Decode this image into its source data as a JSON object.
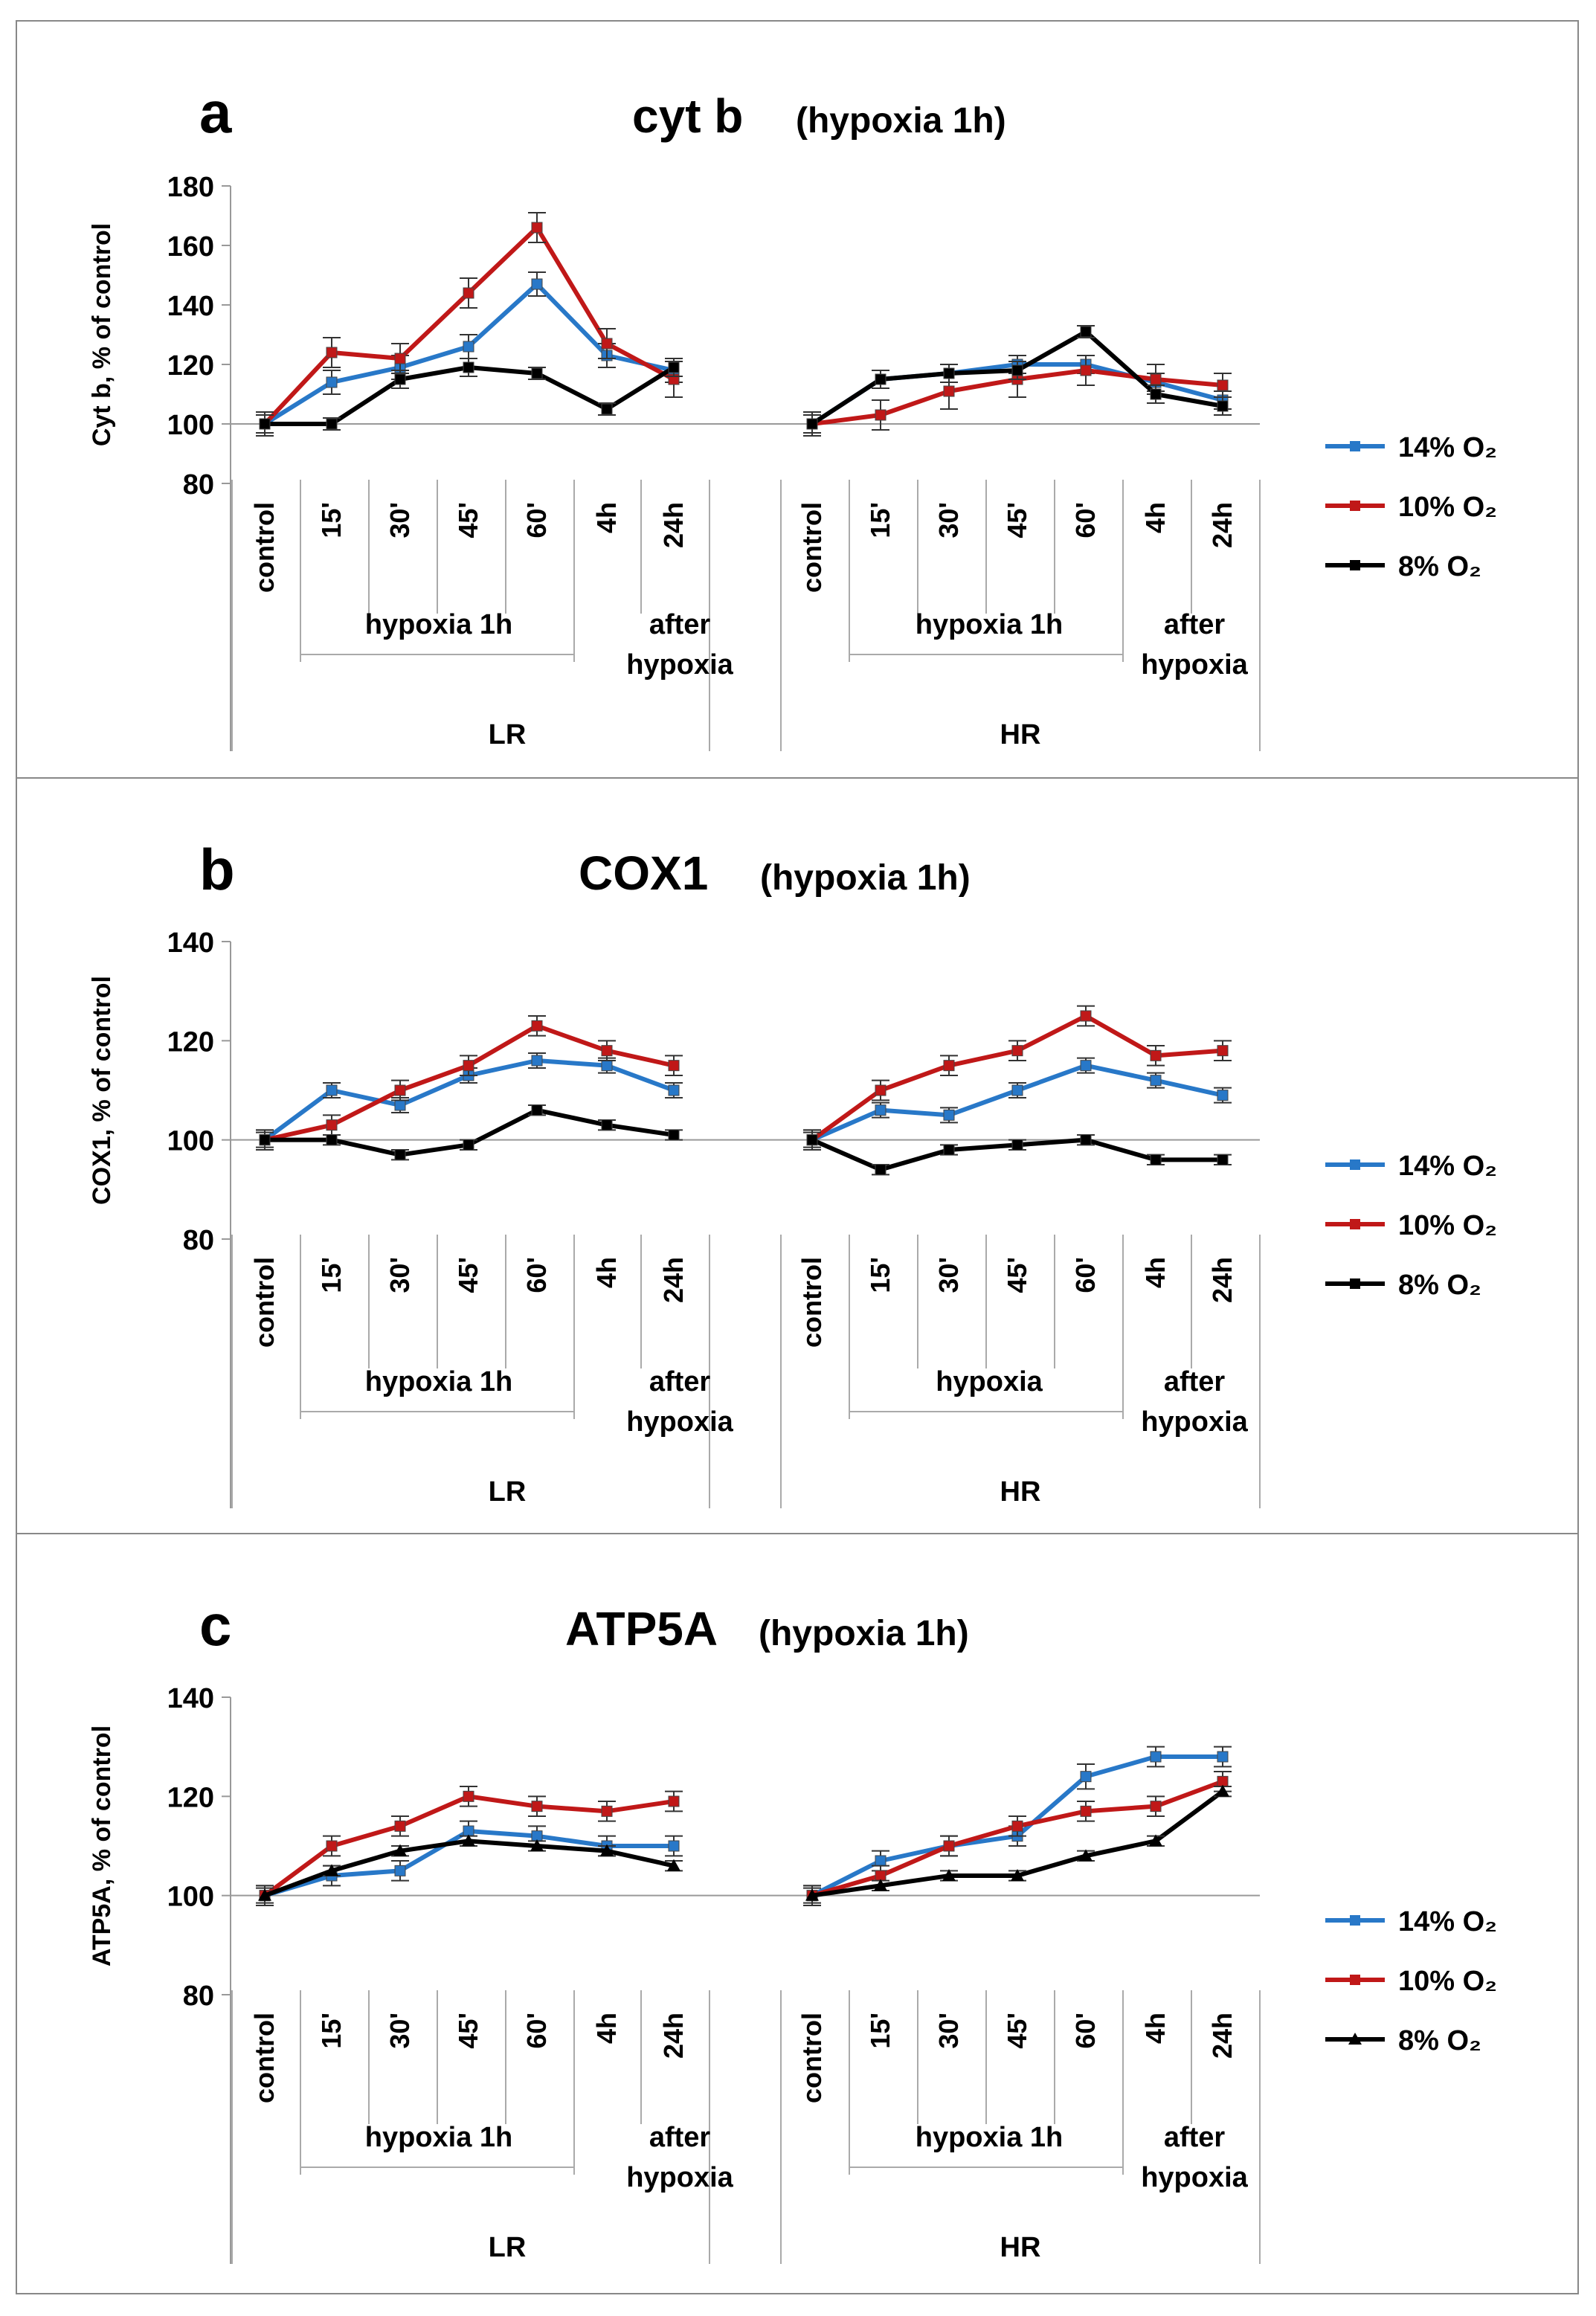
{
  "colors": {
    "s14": "#2878c8",
    "s10": "#c01818",
    "s8": "#000000"
  },
  "chart_data": [
    {
      "panel": "a",
      "type": "line",
      "title": "cyt b",
      "subtitle": "(hypoxia 1h)",
      "ylabel": "Cyt b, % of control",
      "ylim": [
        80,
        180
      ],
      "yticks": [
        80,
        100,
        120,
        140,
        160,
        180
      ],
      "timepoints": [
        "control",
        "15'",
        "30'",
        "45'",
        "60'",
        "4h",
        "24h"
      ],
      "groups": [
        {
          "name": "LR",
          "hypoxia_label": "hypoxia 1h",
          "after_label_1": "after",
          "after_label_2": "hypoxia"
        },
        {
          "name": "HR",
          "hypoxia_label": "hypoxia 1h",
          "after_label_1": "after",
          "after_label_2": "hypoxia"
        }
      ],
      "legend": [
        "14% O₂",
        "10% O₂",
        "8% O₂"
      ],
      "series": [
        {
          "name": "14% O₂",
          "color": "#2878c8",
          "marker": "square",
          "values": [
            [
              100,
              114,
              119,
              126,
              147,
              123,
              118
            ],
            [
              100,
              115,
              117,
              120,
              120,
              114,
              108
            ]
          ],
          "errors": [
            [
              4,
              4,
              4,
              4,
              4,
              4,
              4
            ],
            [
              4,
              3,
              3,
              3,
              3,
              3,
              3
            ]
          ]
        },
        {
          "name": "10% O₂",
          "color": "#c01818",
          "marker": "square",
          "values": [
            [
              100,
              124,
              122,
              144,
              166,
              127,
              115
            ],
            [
              100,
              103,
              111,
              115,
              118,
              115,
              113
            ]
          ],
          "errors": [
            [
              4,
              5,
              5,
              5,
              5,
              5,
              6
            ],
            [
              4,
              5,
              6,
              6,
              5,
              5,
              4
            ]
          ]
        },
        {
          "name": "8% O₂",
          "color": "#000000",
          "marker": "square",
          "values": [
            [
              100,
              100,
              115,
              119,
              117,
              105,
              119
            ],
            [
              100,
              115,
              117,
              118,
              131,
              110,
              106
            ]
          ],
          "errors": [
            [
              3,
              2,
              3,
              3,
              2,
              2,
              3
            ],
            [
              3,
              3,
              3,
              3,
              2,
              3,
              3
            ]
          ]
        }
      ]
    },
    {
      "panel": "b",
      "type": "line",
      "title": "COX1",
      "subtitle": "(hypoxia 1h)",
      "ylabel": "COX1, % of control",
      "ylim": [
        80,
        140
      ],
      "yticks": [
        80,
        100,
        120,
        140
      ],
      "timepoints": [
        "control",
        "15'",
        "30'",
        "45'",
        "60'",
        "4h",
        "24h"
      ],
      "groups": [
        {
          "name": "LR",
          "hypoxia_label": "hypoxia 1h",
          "after_label_1": "after",
          "after_label_2": "hypoxia"
        },
        {
          "name": "HR",
          "hypoxia_label": "hypoxia",
          "after_label_1": "after",
          "after_label_2": "hypoxia"
        }
      ],
      "legend": [
        "14% O₂",
        "10% O₂",
        "8% O₂"
      ],
      "series": [
        {
          "name": "14% O₂",
          "color": "#2878c8",
          "marker": "square",
          "values": [
            [
              100,
              110,
              107,
              113,
              116,
              115,
              110
            ],
            [
              100,
              106,
              105,
              110,
              115,
              112,
              109
            ]
          ],
          "errors": [
            [
              2,
              1.5,
              1.5,
              1.5,
              1.5,
              1.5,
              1.5
            ],
            [
              2,
              1.5,
              1.5,
              1.5,
              1.5,
              1.5,
              1.5
            ]
          ]
        },
        {
          "name": "10% O₂",
          "color": "#c01818",
          "marker": "square",
          "values": [
            [
              100,
              103,
              110,
              115,
              123,
              118,
              115
            ],
            [
              100,
              110,
              115,
              118,
              125,
              117,
              118
            ]
          ],
          "errors": [
            [
              2,
              2,
              2,
              2,
              2,
              2,
              2
            ],
            [
              2,
              2,
              2,
              2,
              2,
              2,
              2
            ]
          ]
        },
        {
          "name": "8% O₂",
          "color": "#000000",
          "marker": "square",
          "values": [
            [
              100,
              100,
              97,
              99,
              106,
              103,
              101
            ],
            [
              100,
              94,
              98,
              99,
              100,
              96,
              96
            ]
          ],
          "errors": [
            [
              1.5,
              1,
              1,
              1,
              1,
              1,
              1
            ],
            [
              1.5,
              1,
              1,
              1,
              1,
              1,
              1
            ]
          ]
        }
      ]
    },
    {
      "panel": "c",
      "type": "line",
      "title": "ATP5A",
      "subtitle": "(hypoxia 1h)",
      "ylabel": "ATP5A, % of control",
      "ylim": [
        80,
        140
      ],
      "yticks": [
        80,
        100,
        120,
        140
      ],
      "timepoints": [
        "control",
        "15'",
        "30'",
        "45'",
        "60'",
        "4h",
        "24h"
      ],
      "groups": [
        {
          "name": "LR",
          "hypoxia_label": "hypoxia 1h",
          "after_label_1": "after",
          "after_label_2": "hypoxia"
        },
        {
          "name": "HR",
          "hypoxia_label": "hypoxia 1h",
          "after_label_1": "after",
          "after_label_2": "hypoxia"
        }
      ],
      "legend": [
        "14% O₂",
        "10% O₂",
        "8% O₂"
      ],
      "series": [
        {
          "name": "14% O₂",
          "color": "#2878c8",
          "marker": "square",
          "values": [
            [
              100,
              104,
              105,
              113,
              112,
              110,
              110
            ],
            [
              100,
              107,
              110,
              112,
              124,
              128,
              128
            ]
          ],
          "errors": [
            [
              2,
              2,
              2,
              2,
              2,
              2,
              2
            ],
            [
              2,
              2,
              2,
              2,
              2.5,
              2,
              2
            ]
          ]
        },
        {
          "name": "10% O₂",
          "color": "#c01818",
          "marker": "square",
          "values": [
            [
              100,
              110,
              114,
              120,
              118,
              117,
              119
            ],
            [
              100,
              104,
              110,
              114,
              117,
              118,
              123
            ]
          ],
          "errors": [
            [
              2,
              2,
              2,
              2,
              2,
              2,
              2
            ],
            [
              2,
              2,
              2,
              2,
              2,
              2,
              2
            ]
          ]
        },
        {
          "name": "8% O₂",
          "color": "#000000",
          "marker": "triangle",
          "values": [
            [
              100,
              105,
              109,
              111,
              110,
              109,
              106
            ],
            [
              100,
              102,
              104,
              104,
              108,
              111,
              121
            ]
          ],
          "errors": [
            [
              1.5,
              1,
              1,
              1,
              1,
              1,
              1
            ],
            [
              1.5,
              1,
              1,
              1,
              1,
              1,
              1
            ]
          ]
        }
      ]
    }
  ]
}
